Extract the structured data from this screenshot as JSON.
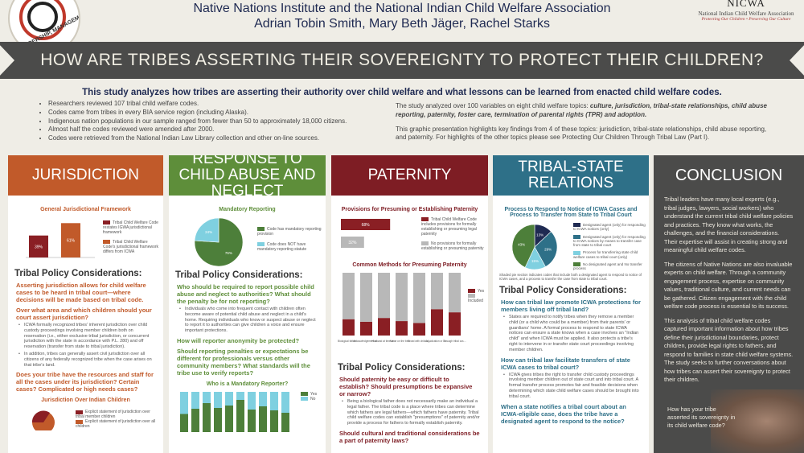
{
  "header": {
    "org_line": "Native Nations Institute and the National Indian Child Welfare Association",
    "authors": "Adrian Tobin Smith, Mary Beth Jäger, Rachel Starks",
    "left_logo_text": "LEADERSHIP, MANAGEMENT, AND PO",
    "nicwa_name": "NICWA",
    "nicwa_full": "National Indian Child Welfare Association",
    "nicwa_tagline": "Protecting Our Children • Preserving Our Culture"
  },
  "banner": {
    "question": "HOW ARE TRIBES ASSERTING THEIR SOVEREIGNTY TO PROTECT THEIR CHILDREN?"
  },
  "intro": {
    "lead": "This study analyzes how tribes are asserting their authority over child welfare and what lessons can be learned from enacted child welfare codes.",
    "bullets": [
      "Researchers reviewed 107 tribal child welfare codes.",
      "Codes came from tribes in every BIA service region (including Alaska).",
      "Indigenous nation populations in our sample ranged from fewer than 50 to approximately 18,000 citizens.",
      "Almost half the codes reviewed were amended after 2000.",
      "Codes were retrieved from the National Indian Law Library collection and other on-line sources."
    ],
    "right_p1_plain": "The study analyzed over 100 variables on eight child welfare topics: ",
    "right_p1_bold": "culture, jurisdiction, tribal-state relationships, child abuse reporting, paternity, foster care, termination of parental rights (TPR) and adoption.",
    "right_p2": "This graphic presentation highlights key findings from 4 of these topics: jurisdiction, tribal-state relationships, child abuse reporting, and paternity. For highlights of the other topics please see Protecting Our Children Through Tribal Law (Part I)."
  },
  "jurisdiction": {
    "title": "JURISDICTION",
    "chart_title": "General Jurisdictional Framework",
    "legend": [
      "Tribal Child Welfare Code restates IGWA jurisdictional framework",
      "Tribal Child Welfare Code's jurisdictional framework differs from ICWA"
    ],
    "policy_title": "Tribal Policy Considerations:",
    "q1": "Asserting jurisdiction allows for child welfare cases to be heard in tribal court—where decisions will be made based on tribal code.",
    "q2": "Over what area and which children should your court assert jurisdiction?",
    "b1": "ICWA formally recognized tribes' inherent jurisdiction over child custody proceedings involving member children both on reservation (i.e., either exclusive tribal jurisdiction, or concurrent jurisdiction with the state in accordance with P.L. 280) and off reservation (transfer from state to tribal jurisdiction).",
    "b2": "In addition, tribes can generally assert civil jurisdiction over all citizens of any federally recognized tribe when the case arises on that tribe's land.",
    "q3": "Does your tribe have the resources and staff for all the cases under its jurisdiction? Certain cases? Complicated or high needs cases?",
    "chart2_title": "Jurisdiction Over Indian Children",
    "legend2": [
      "Explicit statement of jurisdiction over tribal member children",
      "Explicit statement of jurisdiction over all children"
    ]
  },
  "abuse": {
    "title": "RESPONSE TO CHILD ABUSE AND NEGLECT",
    "chart_title": "Mandatory Reporting",
    "legend": [
      "Code has mandatory reporting provision",
      "Code does NOT have mandatory reporting statute"
    ],
    "policy_title": "Tribal Policy Considerations:",
    "q1": "Who should be required to report possible child abuse and neglect to authorities? What should the penalty be for not reporting?",
    "b1": "Individuals who come into frequent contact with children often become aware of potential child abuse and neglect in a child's home. Requiring individuals who know or suspect abuse or neglect to report it to authorities can give children a voice and ensure important protections.",
    "q2": "How will reporter anonymity be protected?",
    "q3": "Should reporting penalties or expectations be different for professionals versus other community members? What standards will the tribe use to verify reports?",
    "chart2_title": "Who is a Mandatory Reporter?",
    "legend2": [
      "Yes",
      "No"
    ]
  },
  "paternity": {
    "title": "PATERNITY",
    "chart_title": "Provisions for Presuming or Establishing Paternity",
    "legend": [
      "Tribal Child Welfare Code includes provisions for formally establishing or presuming legal paternity",
      "No provisions for formally establishing or presuming paternity"
    ],
    "chart2_title": "Common Methods for Presuming Paternity",
    "legend2": [
      "Yes",
      "Included"
    ],
    "categories": [
      "Biological father with DNA testing",
      "Acknowledgement via tribal court",
      "Husband at time of conception or birth",
      "Name on the birth certificate",
      "Lived with child and held out as father",
      "Adjudication or court order",
      "Through tribal custom"
    ],
    "policy_title": "Tribal Policy Considerations:",
    "q1": "Should paternity be easy or difficult to establish? Should presumptions be expansive or narrow?",
    "b1": "Being a biological father does not necessarily make an individual a legal father. The tribal code is a place where tribes can determine which fathers are legal fathers—which fathers have paternity. Tribal child welfare codes can establish \"presumptions\" of paternity and/or provide a process for fathers to formally establish paternity.",
    "q2": "Should cultural and traditional considerations be a part of paternity laws?"
  },
  "tribal_state": {
    "title": "TRIBAL-STATE RELATIONS",
    "chart_title": "Process to Respond to Notice of ICWA Cases and Process to Transfer from State to Tribal Court",
    "legend": [
      "Designated agent (only) for responding to ICWA notices (only)",
      "Designated agent (only) for responding to ICWA notices by means to transfer case from state to tribal court",
      "Process for transferring state child welfare cases to tribal court (only)",
      "No designated agent and No transfer process"
    ],
    "note": "Shaded pie section indicates codes that include both a designated agent to respond to notice of ICWA cases, and a process to transfer the case from state to tribal court.",
    "policy_title": "Tribal Policy Considerations:",
    "q1": "How can tribal law promote ICWA protections for members living off tribal land?",
    "b1": "States are required to notify tribes when they remove a member child (or a child who could be a member) from their parents' or guardians' home. A formal process to respond to state ICWA notices can ensure a state knows when a case involves an \"Indian child\" and when ICWA must be applied. It also protects a tribe's right to intervene in or transfer state court proceedings involving member children.",
    "q2": "How can tribal law facilitate transfers of state ICWA cases to tribal court?",
    "b2": "ICWA gives tribes the right to transfer child custody proceedings involving member children out of state court and into tribal court. A formal transfer process promotes fair and feasible decisions when determining which state child welfare cases should be brought into tribal court.",
    "q3": "When a state notifies a tribal court about an ICWA-eligible case, does the tribe have a designated agent to respond to the notice?"
  },
  "conclusion": {
    "title": "CONCLUSION",
    "p1": "Tribal leaders have many local experts (e.g., tribal judges, lawyers, social workers) who understand the current tribal child welfare policies and practices. They know what works, the challenges, and the financial considerations. Their expertise will assist in creating strong and meaningful child welfare codes.",
    "p2": "The citizens of Native Nations are also invaluable experts on child welfare. Through a community engagement process, expertise on community values, traditional culture, and current needs can be gathered. Citizen engagement with the child welfare code process is essential to its success.",
    "p3": "This analysis of tribal child welfare codes captured important information about how tribes define their jurisdictional boundaries, protect children, provide legal rights to fathers, and respond to families in state child welfare systems.  The study seeks to further conversations about how tribes can assert their sovereignty to protect their children.",
    "p4": "How has your tribe asserted its sovereignty in its child welfare code?"
  },
  "chart_data": [
    {
      "type": "bar",
      "title": "General Jurisdictional Framework",
      "categories": [
        "",
        ""
      ],
      "values": [
        39,
        61
      ],
      "value_labels": [
        "39%",
        "61%"
      ],
      "colors": [
        "#8a1f24",
        "#c15a2a"
      ]
    },
    {
      "type": "pie",
      "title": "Mandatory Reporting",
      "values": [
        76,
        24
      ],
      "value_labels": [
        "76%",
        "24%"
      ],
      "colors": [
        "#4d7f3a",
        "#7fd0e0"
      ]
    },
    {
      "type": "bar",
      "title": "Who is a Mandatory Reporter?",
      "series": [
        {
          "name": "Yes",
          "values": [
            45,
            58,
            72,
            60,
            66,
            80,
            56,
            64,
            54,
            48
          ]
        },
        {
          "name": "No",
          "values": [
            55,
            42,
            28,
            40,
            34,
            20,
            44,
            36,
            46,
            52
          ]
        }
      ],
      "colors": [
        "#4d7f3a",
        "#7fd0e0"
      ]
    },
    {
      "type": "bar",
      "title": "Provisions for Presuming or Establishing Paternity",
      "values": [
        68,
        32
      ],
      "value_labels": [
        "68%",
        "32%"
      ],
      "colors": [
        "#8a1f24",
        "#b8b8b8"
      ]
    },
    {
      "type": "bar",
      "title": "Common Methods for Presuming Paternity",
      "categories": [
        "Biological father with DNA testing",
        "Acknowledgement via tribal court",
        "Husband at time of conception or birth",
        "Name on the birth certificate",
        "Lived with child and held out as father",
        "Adjudication or court order",
        "Through tribal custom"
      ],
      "series": [
        {
          "name": "Yes",
          "values": [
            26,
            22,
            28,
            23,
            20,
            42,
            37
          ]
        },
        {
          "name": "Included",
          "values": [
            74,
            78,
            72,
            77,
            80,
            58,
            63
          ]
        }
      ],
      "colors": [
        "#8a1f24",
        "#b8b8b8"
      ]
    },
    {
      "type": "pie",
      "title": "Process to Respond to Notice of ICWA Cases and Process to Transfer from State to Tribal Court",
      "values": [
        13,
        29,
        15,
        43
      ],
      "value_labels": [
        "13%",
        "29%",
        "15%",
        "43%"
      ],
      "colors": [
        "#1f2a52",
        "#2e7088",
        "#7fd0e0",
        "#4d7f3a"
      ]
    }
  ]
}
